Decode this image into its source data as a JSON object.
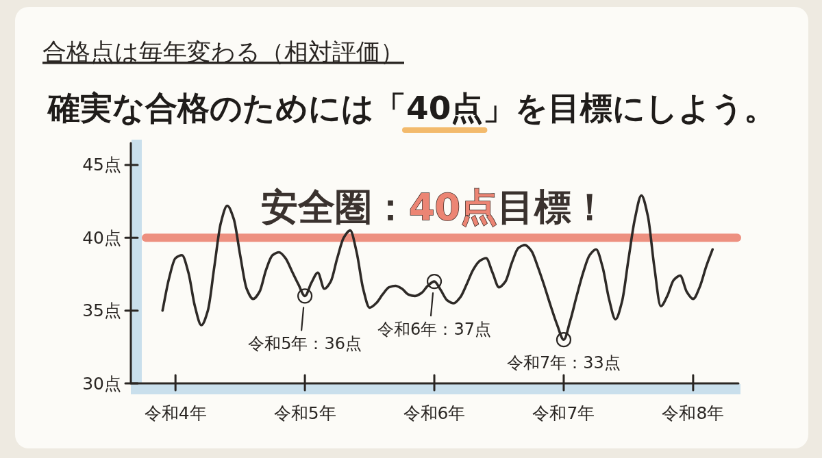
{
  "chart_data": {
    "type": "line",
    "title": "合格点は毎年変わる（相対評価）",
    "subtitle": "確実な合格のためには「40点」を目標にしよう。",
    "categories": [
      null,
      null,
      "令和4年",
      null,
      null,
      null,
      null,
      null,
      null,
      null,
      null,
      null,
      null,
      null,
      null,
      null,
      null,
      null,
      null,
      null,
      null,
      null,
      "令和5年",
      null,
      null,
      null,
      null,
      null,
      null,
      null,
      null,
      null,
      null,
      null,
      null,
      null,
      null,
      null,
      null,
      null,
      null,
      null,
      "令和6年",
      null,
      null,
      null,
      null,
      null,
      null,
      null,
      null,
      null,
      null,
      null,
      null,
      null,
      null,
      null,
      null,
      null,
      null,
      null,
      "令和7年",
      null,
      null,
      null,
      null,
      null,
      null,
      null,
      null,
      null,
      null,
      null,
      null,
      null,
      null,
      null,
      null,
      null,
      null,
      null,
      "令和8年",
      null,
      null,
      null
    ],
    "series": [
      {
        "color": "#2e2a27",
        "values": [
          35.0,
          37.2,
          38.6,
          38.8,
          37.6,
          35.3,
          34.0,
          35.0,
          38.0,
          41.0,
          42.2,
          41.3,
          38.8,
          36.5,
          35.8,
          36.3,
          37.8,
          38.8,
          39.0,
          38.6,
          37.7,
          36.8,
          36,
          36.9,
          37.6,
          36.5,
          37.0,
          38.6,
          40.0,
          40.5,
          39.0,
          36.5,
          35.2,
          35.5,
          36.1,
          36.6,
          36.7,
          36.5,
          36.1,
          36.0,
          36.2,
          36.7,
          37,
          36.4,
          35.7,
          35.5,
          35.9,
          36.8,
          37.8,
          38.4,
          38.6,
          37.6,
          36.6,
          37.0,
          38.3,
          39.3,
          39.5,
          39.1,
          38.0,
          36.7,
          35.3,
          34.0,
          33,
          34.3,
          36.0,
          37.6,
          38.8,
          39.2,
          38.0,
          35.8,
          34.4,
          35.6,
          38.5,
          41.3,
          42.9,
          41.5,
          38.0,
          35.3,
          36.0,
          37.1,
          37.4,
          36.3,
          35.8,
          36.6,
          38.0,
          39.2
        ]
      }
    ],
    "ylim": [
      30,
      46.5
    ],
    "yticks": [
      {
        "value": 30,
        "label": "30点"
      },
      {
        "value": 35,
        "label": "35点"
      },
      {
        "value": 40,
        "label": "40点"
      },
      {
        "value": 45,
        "label": "45点"
      }
    ],
    "ref_lines": [
      {
        "axis": "y",
        "value": 40,
        "label": "安全圏：40点目標！",
        "color": "#ec8574"
      }
    ],
    "annotations": [
      {
        "text": "令和5年：36点",
        "x": "令和5年",
        "y": 36
      },
      {
        "text": "令和6年：37点",
        "x": "令和6年",
        "y": 37
      },
      {
        "text": "令和7年：33点",
        "x": "令和7年",
        "y": 33
      }
    ]
  }
}
